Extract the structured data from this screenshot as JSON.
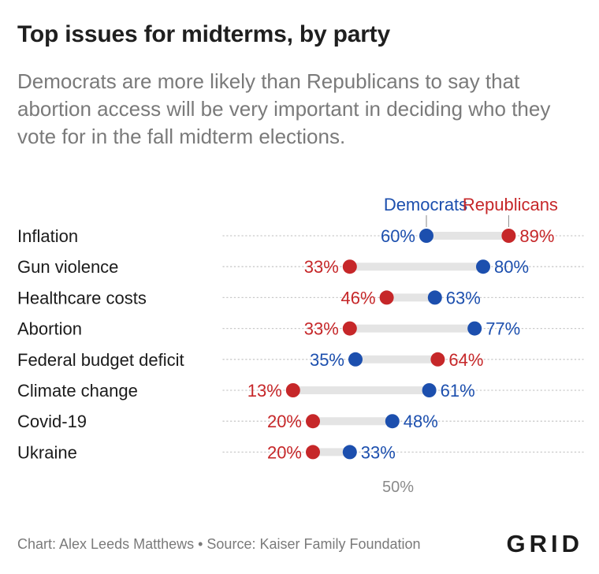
{
  "title": "Top issues for midterms, by party",
  "subtitle": "Democrats are more likely than Republicans to say that abortion access will be very important in deciding who they vote for in the fall midterm elections.",
  "footer": {
    "credit": "Chart: Alex Leeds Matthews • Source: Kaiser Family Foundation",
    "logo": "GRID"
  },
  "colors": {
    "democrats": "#1c4fae",
    "republicans": "#c62729",
    "connector": "#e4e4e4",
    "gridline": "#c9c9c9",
    "label": "#1b1b1b",
    "muted": "#8a8a8a"
  },
  "chart_data": {
    "type": "dot-range",
    "categories": [
      "Inflation",
      "Gun violence",
      "Healthcare costs",
      "Abortion",
      "Federal budget deficit",
      "Climate change",
      "Covid-19",
      "Ukraine"
    ],
    "series": [
      {
        "name": "Democrats",
        "color": "#1c4fae",
        "values": [
          60,
          80,
          63,
          77,
          35,
          61,
          48,
          33
        ]
      },
      {
        "name": "Republicans",
        "color": "#c62729",
        "values": [
          89,
          33,
          46,
          33,
          64,
          13,
          20,
          20
        ]
      }
    ],
    "value_suffix": "%",
    "x_ticks": [
      {
        "value": 50,
        "label": "50%"
      }
    ],
    "legend_placement": "top, labels above the first row's dots"
  }
}
